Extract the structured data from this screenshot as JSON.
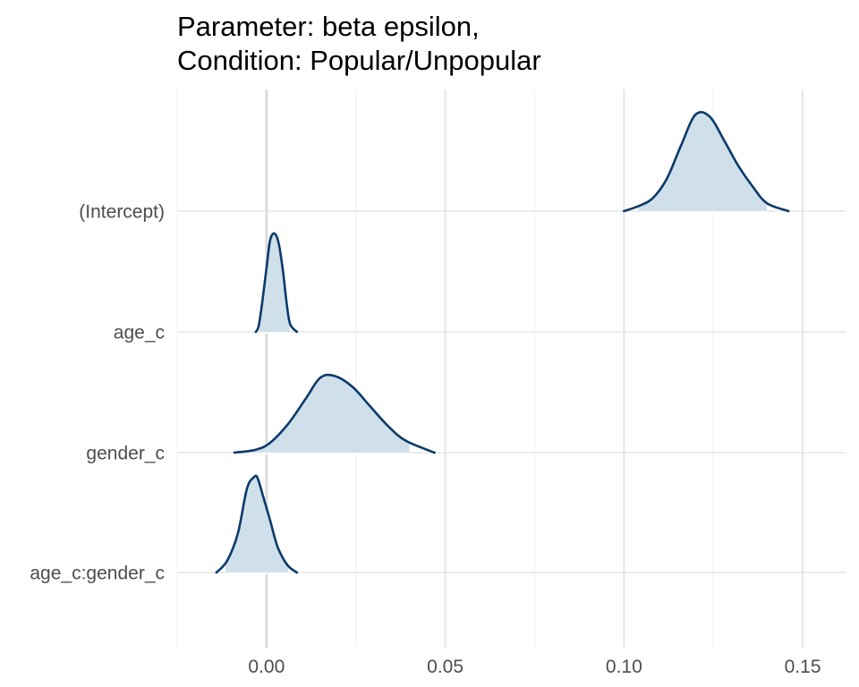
{
  "chart_data": {
    "type": "ridgeline",
    "title_lines": [
      "Parameter: beta epsilon,",
      "Condition: Popular/Unpopular"
    ],
    "xlabel": "",
    "ylabel": "",
    "xlim": [
      -0.025,
      0.162
    ],
    "x_ticks": [
      {
        "value": 0.0,
        "label": "0.00"
      },
      {
        "value": 0.05,
        "label": "0.05"
      },
      {
        "value": 0.1,
        "label": "0.10"
      },
      {
        "value": 0.15,
        "label": "0.15"
      }
    ],
    "x_minor_ticks": [
      -0.025,
      0.025,
      0.075,
      0.125
    ],
    "vline_at": 0.0,
    "colors": {
      "line": "#0b3a6b",
      "fill": "#cfe0eb",
      "grid_major": "#e6e6e6",
      "grid_minor": "#f2f2f2",
      "zero_line": "#dcdcdc"
    },
    "series": [
      {
        "name": "(Intercept)",
        "mode": 0.121,
        "interval_fill": [
          0.104,
          0.14
        ],
        "density": [
          [
            0.1,
            0.0
          ],
          [
            0.104,
            0.05
          ],
          [
            0.108,
            0.13
          ],
          [
            0.112,
            0.33
          ],
          [
            0.116,
            0.67
          ],
          [
            0.12,
            0.98
          ],
          [
            0.124,
            0.96
          ],
          [
            0.128,
            0.72
          ],
          [
            0.132,
            0.46
          ],
          [
            0.136,
            0.25
          ],
          [
            0.14,
            0.08
          ],
          [
            0.146,
            0.0
          ]
        ]
      },
      {
        "name": "age_c",
        "mode": 0.0025,
        "interval_fill": [
          -0.002,
          0.0065
        ],
        "density": [
          [
            -0.003,
            0.0
          ],
          [
            -0.0022,
            0.06
          ],
          [
            -0.0012,
            0.3
          ],
          [
            0.0,
            0.65
          ],
          [
            0.001,
            0.93
          ],
          [
            0.0022,
            1.0
          ],
          [
            0.0034,
            0.9
          ],
          [
            0.0046,
            0.62
          ],
          [
            0.0056,
            0.3
          ],
          [
            0.0066,
            0.08
          ],
          [
            0.0085,
            0.0
          ]
        ]
      },
      {
        "name": "gender_c",
        "mode": 0.017,
        "interval_fill": [
          -0.006,
          0.04
        ],
        "density": [
          [
            -0.009,
            0.0
          ],
          [
            -0.003,
            0.03
          ],
          [
            0.001,
            0.1
          ],
          [
            0.006,
            0.29
          ],
          [
            0.011,
            0.55
          ],
          [
            0.015,
            0.76
          ],
          [
            0.019,
            0.78
          ],
          [
            0.024,
            0.67
          ],
          [
            0.029,
            0.47
          ],
          [
            0.034,
            0.27
          ],
          [
            0.039,
            0.12
          ],
          [
            0.047,
            0.0
          ]
        ]
      },
      {
        "name": "age_c:gender_c",
        "mode": -0.003,
        "interval_fill": [
          -0.0115,
          0.006
        ],
        "density": [
          [
            -0.014,
            0.0
          ],
          [
            -0.011,
            0.12
          ],
          [
            -0.008,
            0.4
          ],
          [
            -0.0055,
            0.85
          ],
          [
            -0.0035,
            0.97
          ],
          [
            -0.0025,
            0.96
          ],
          [
            -0.001,
            0.78
          ],
          [
            0.001,
            0.53
          ],
          [
            0.003,
            0.27
          ],
          [
            0.005,
            0.12
          ],
          [
            0.0065,
            0.05
          ],
          [
            0.0085,
            0.0
          ]
        ]
      }
    ]
  }
}
